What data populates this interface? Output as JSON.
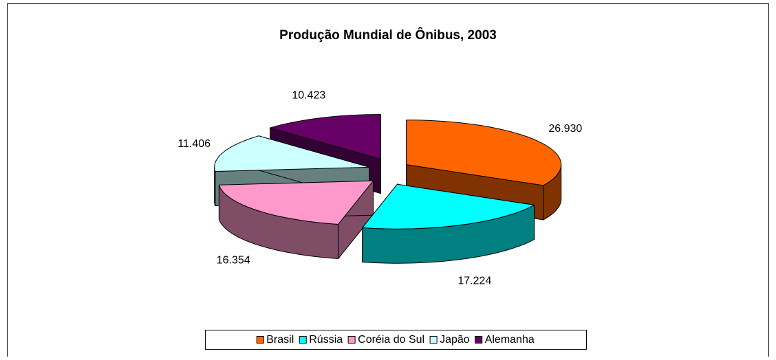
{
  "chart_data": {
    "type": "pie3d",
    "title": "Produção Mundial de Ônibus, 2003",
    "categories": [
      "Brasil",
      "Rússia",
      "Coréia do Sul",
      "Japão",
      "Alemanha"
    ],
    "values": [
      26930,
      17224,
      16354,
      11406,
      10423
    ],
    "value_labels": [
      "26.930",
      "17.224",
      "16.354",
      "11.406",
      "10.423"
    ],
    "colors": [
      "#ff6600",
      "#00ffff",
      "#ff99cc",
      "#ccffff",
      "#660066"
    ],
    "legend": "bottom"
  }
}
